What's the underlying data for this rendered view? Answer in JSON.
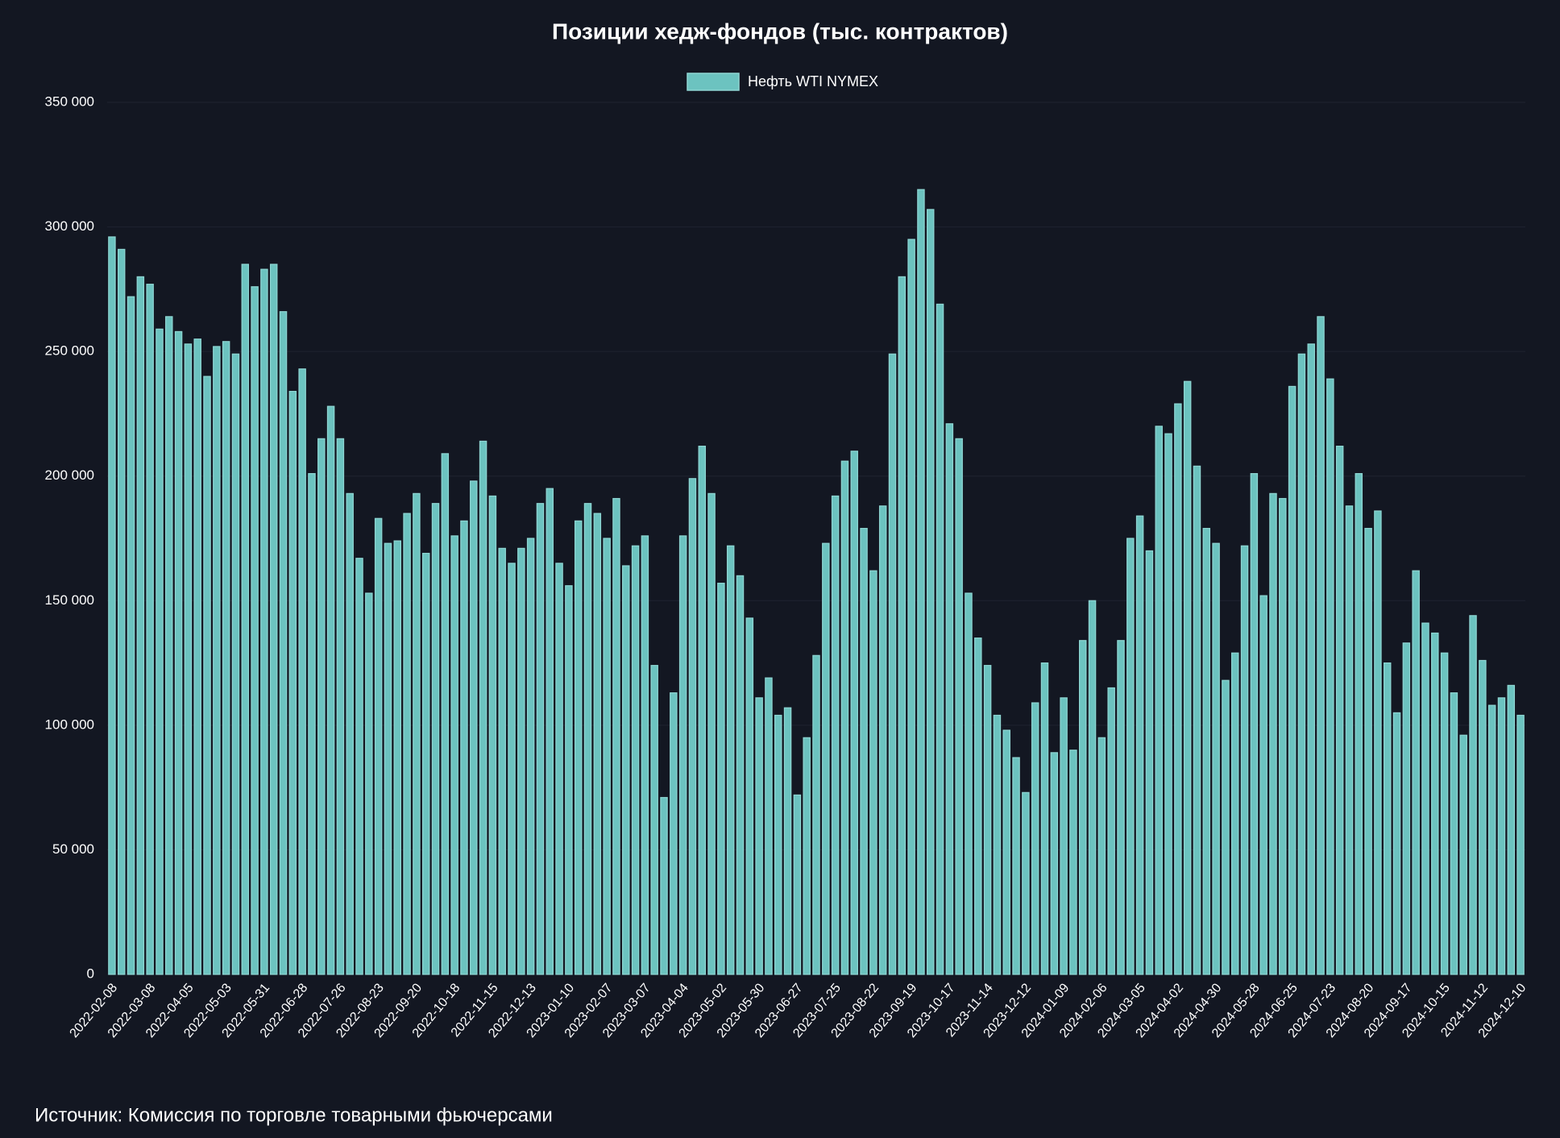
{
  "chart_data": {
    "type": "bar",
    "title": "Позиции хедж-фондов  (тыс. контрактов)",
    "source": "Источник: Комиссия по торговле товарными фьючерсами",
    "categories": [
      "2022-02-08",
      null,
      null,
      null,
      "2022-03-08",
      null,
      null,
      null,
      "2022-04-05",
      null,
      null,
      null,
      "2022-05-03",
      null,
      null,
      null,
      "2022-05-31",
      null,
      null,
      null,
      "2022-06-28",
      null,
      null,
      null,
      "2022-07-26",
      null,
      null,
      null,
      "2022-08-23",
      null,
      null,
      null,
      "2022-09-20",
      null,
      null,
      null,
      "2022-10-18",
      null,
      null,
      null,
      "2022-11-15",
      null,
      null,
      null,
      "2022-12-13",
      null,
      null,
      null,
      "2023-01-10",
      null,
      null,
      null,
      "2023-02-07",
      null,
      null,
      null,
      "2023-03-07",
      null,
      null,
      null,
      "2023-04-04",
      null,
      null,
      null,
      "2023-05-02",
      null,
      null,
      null,
      "2023-05-30",
      null,
      null,
      null,
      "2023-06-27",
      null,
      null,
      null,
      "2023-07-25",
      null,
      null,
      null,
      "2023-08-22",
      null,
      null,
      null,
      "2023-09-19",
      null,
      null,
      null,
      "2023-10-17",
      null,
      null,
      null,
      "2023-11-14",
      null,
      null,
      null,
      "2023-12-12",
      null,
      null,
      null,
      "2024-01-09",
      null,
      null,
      null,
      "2024-02-06",
      null,
      null,
      null,
      "2024-03-05",
      null,
      null,
      null,
      "2024-04-02",
      null,
      null,
      null,
      "2024-04-30",
      null,
      null,
      null,
      "2024-05-28",
      null,
      null,
      null,
      "2024-06-25",
      null,
      null,
      null,
      "2024-07-23",
      null,
      null,
      null,
      "2024-08-20",
      null,
      null,
      null,
      "2024-09-17",
      null,
      null,
      null,
      "2024-10-15",
      null,
      null,
      null,
      "2024-11-12",
      null,
      null,
      null,
      "2024-12-10"
    ],
    "series": [
      {
        "name": "Нефть WTI NYMEX",
        "color": "#6cc3c0",
        "values": [
          296000,
          291000,
          272000,
          280000,
          277000,
          259000,
          264000,
          258000,
          253000,
          255000,
          240000,
          252000,
          254000,
          249000,
          285000,
          276000,
          283000,
          285000,
          266000,
          234000,
          243000,
          201000,
          215000,
          228000,
          215000,
          193000,
          167000,
          153000,
          183000,
          173000,
          174000,
          185000,
          193000,
          169000,
          189000,
          209000,
          176000,
          182000,
          198000,
          214000,
          192000,
          171000,
          165000,
          171000,
          175000,
          189000,
          195000,
          165000,
          156000,
          182000,
          189000,
          185000,
          175000,
          191000,
          164000,
          172000,
          176000,
          124000,
          71000,
          113000,
          176000,
          199000,
          212000,
          193000,
          157000,
          172000,
          160000,
          143000,
          111000,
          119000,
          104000,
          107000,
          72000,
          95000,
          128000,
          173000,
          192000,
          206000,
          210000,
          179000,
          162000,
          188000,
          249000,
          280000,
          295000,
          315000,
          307000,
          269000,
          221000,
          215000,
          153000,
          135000,
          124000,
          104000,
          98000,
          87000,
          73000,
          109000,
          125000,
          89000,
          111000,
          90000,
          134000,
          150000,
          95000,
          115000,
          134000,
          175000,
          184000,
          170000,
          220000,
          217000,
          229000,
          238000,
          204000,
          179000,
          173000,
          118000,
          129000,
          172000,
          201000,
          152000,
          193000,
          191000,
          236000,
          249000,
          253000,
          264000,
          239000,
          212000,
          188000,
          201000,
          179000,
          186000,
          125000,
          105000,
          133000,
          162000,
          141000,
          137000,
          129000,
          113000,
          96000,
          144000,
          126000,
          108000,
          111000,
          116000,
          104000
        ]
      }
    ],
    "ylim": [
      0,
      350000
    ],
    "yticks": [
      0,
      {
        "value": 50000,
        "label": "50 000"
      },
      {
        "value": 100000,
        "label": "100 000"
      },
      {
        "value": 150000,
        "label": "150 000"
      },
      {
        "value": 200000,
        "label": "200 000"
      },
      {
        "value": 250000,
        "label": "250 000"
      },
      {
        "value": 300000,
        "label": "300 000"
      },
      {
        "value": 350000,
        "label": "350 000"
      }
    ],
    "grid": true,
    "legend": "top"
  }
}
